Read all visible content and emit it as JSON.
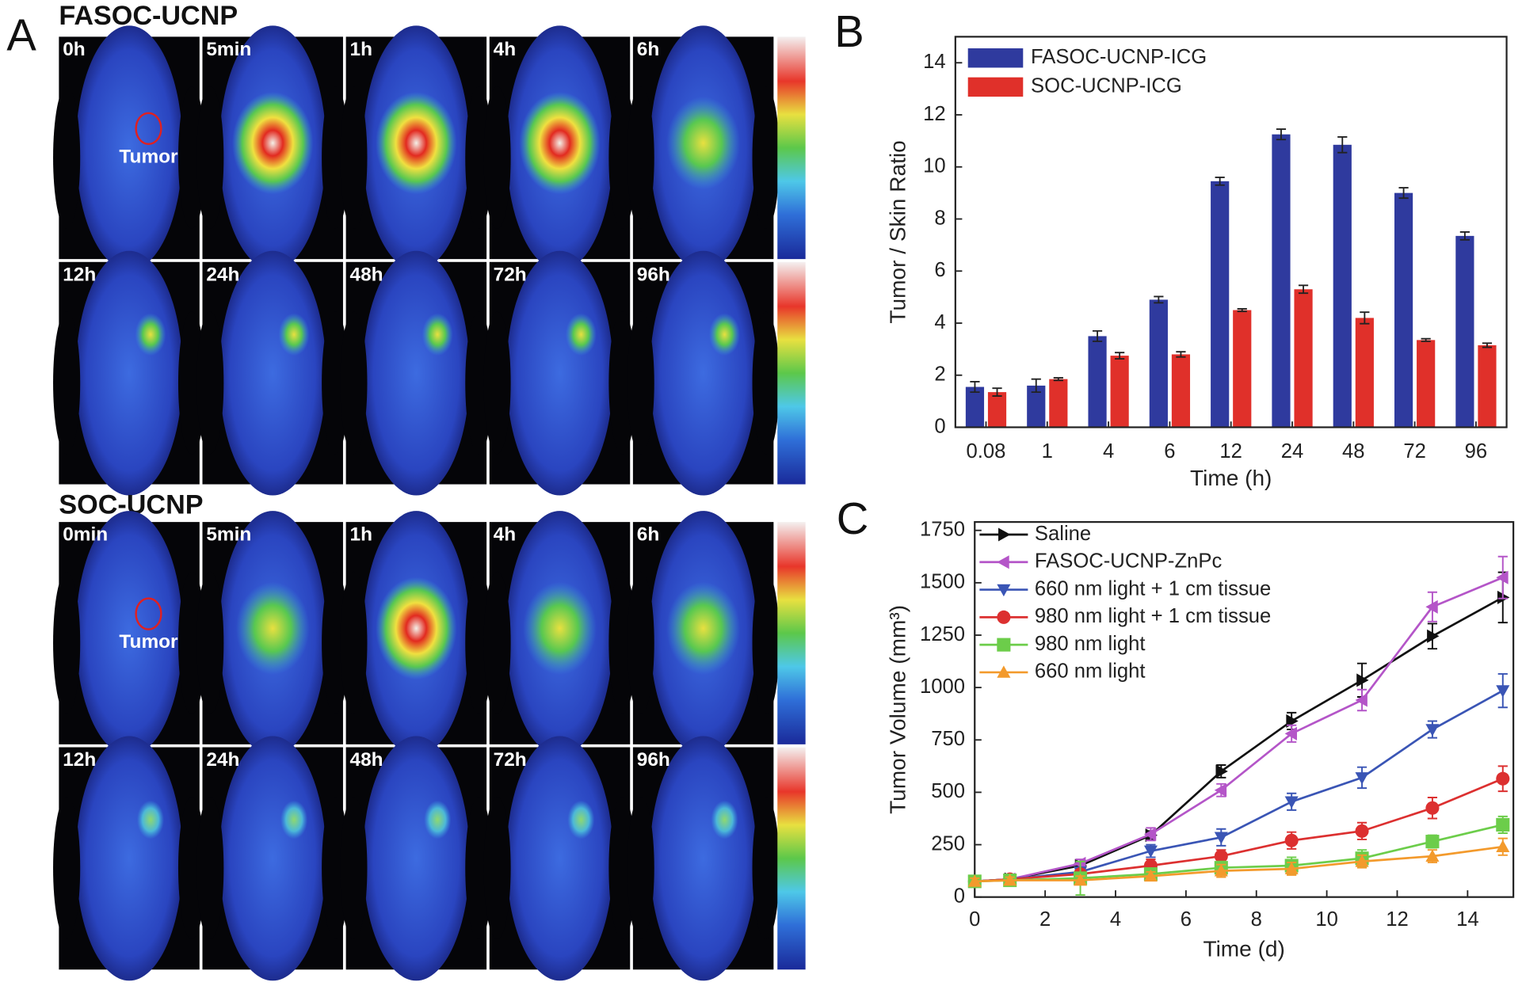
{
  "image_panel": {
    "label": "A",
    "groups": [
      {
        "title": "FASOC-UCNP",
        "annotation": "Tumor",
        "rows": [
          [
            "0h",
            "5min",
            "1h",
            "4h",
            "6h"
          ],
          [
            "12h",
            "24h",
            "48h",
            "72h",
            "96h"
          ]
        ]
      },
      {
        "title": "SOC-UCNP",
        "annotation": "Tumor",
        "rows": [
          [
            "0min",
            "5min",
            "1h",
            "4h",
            "6h"
          ],
          [
            "12h",
            "24h",
            "48h",
            "72h",
            "96h"
          ]
        ]
      }
    ]
  },
  "chart_data": [
    {
      "type": "bar",
      "panel_label": "B",
      "xlabel": "Time (h)",
      "ylabel": "Tumor / Skin Ratio",
      "categories": [
        "0.08",
        "1",
        "4",
        "6",
        "12",
        "24",
        "48",
        "72",
        "96"
      ],
      "series": [
        {
          "name": "FASOC-UCNP-ICG",
          "color": "#2f3a9e",
          "values": [
            1.55,
            1.6,
            3.5,
            4.9,
            9.45,
            11.25,
            10.85,
            9.0,
            7.35
          ],
          "errors": [
            0.2,
            0.25,
            0.2,
            0.12,
            0.15,
            0.2,
            0.3,
            0.2,
            0.15
          ]
        },
        {
          "name": "SOC-UCNP-ICG",
          "color": "#e0302a",
          "values": [
            1.35,
            1.85,
            2.75,
            2.8,
            4.5,
            5.3,
            4.2,
            3.35,
            3.15
          ],
          "errors": [
            0.15,
            0.05,
            0.12,
            0.1,
            0.05,
            0.15,
            0.22,
            0.05,
            0.08
          ]
        }
      ],
      "ylim": [
        0,
        15
      ],
      "yticks": [
        0,
        2,
        4,
        6,
        8,
        10,
        12,
        14
      ],
      "legend": "upper-left"
    },
    {
      "type": "line",
      "panel_label": "C",
      "xlabel": "Time (d)",
      "ylabel": "Tumor Volume (mm³)",
      "x": [
        0,
        1,
        3,
        5,
        7,
        9,
        11,
        13,
        15
      ],
      "series": [
        {
          "name": "Saline",
          "color": "#111111",
          "marker": "triangle-right",
          "values": [
            75,
            85,
            150,
            295,
            600,
            840,
            1035,
            1245,
            1430
          ],
          "errors": [
            20,
            20,
            20,
            20,
            30,
            40,
            80,
            60,
            120
          ]
        },
        {
          "name": "FASOC-UCNP-ZnPc",
          "color": "#b455c8",
          "marker": "triangle-left",
          "values": [
            75,
            85,
            160,
            300,
            510,
            780,
            940,
            1385,
            1525
          ],
          "errors": [
            20,
            20,
            20,
            30,
            30,
            40,
            50,
            70,
            100
          ]
        },
        {
          "name": "660 nm light + 1 cm tissue",
          "color": "#3a55b5",
          "marker": "triangle-down",
          "values": [
            75,
            85,
            120,
            220,
            285,
            455,
            570,
            800,
            985
          ],
          "errors": [
            20,
            20,
            20,
            30,
            40,
            40,
            50,
            40,
            80
          ]
        },
        {
          "name": "980 nm light + 1 cm tissue",
          "color": "#dc3030",
          "marker": "circle",
          "values": [
            75,
            85,
            110,
            150,
            195,
            270,
            315,
            425,
            565
          ],
          "errors": [
            20,
            20,
            20,
            30,
            30,
            40,
            40,
            50,
            60
          ]
        },
        {
          "name": "980 nm light",
          "color": "#6ccd4a",
          "marker": "square",
          "values": [
            75,
            80,
            90,
            110,
            140,
            150,
            185,
            265,
            345
          ],
          "errors": [
            15,
            15,
            80,
            20,
            30,
            40,
            40,
            30,
            40
          ]
        },
        {
          "name": "660 nm light",
          "color": "#f39a2c",
          "marker": "triangle-up",
          "values": [
            75,
            80,
            80,
            100,
            125,
            135,
            170,
            195,
            240
          ],
          "errors": [
            15,
            15,
            20,
            20,
            30,
            30,
            30,
            30,
            40
          ]
        }
      ],
      "xlim": [
        0,
        15.3
      ],
      "xticks": [
        0,
        2,
        4,
        6,
        8,
        10,
        12,
        14
      ],
      "ylim": [
        0,
        1790
      ],
      "yticks": [
        0,
        250,
        500,
        750,
        1000,
        1250,
        1500,
        1750
      ],
      "legend": "upper-left"
    }
  ]
}
